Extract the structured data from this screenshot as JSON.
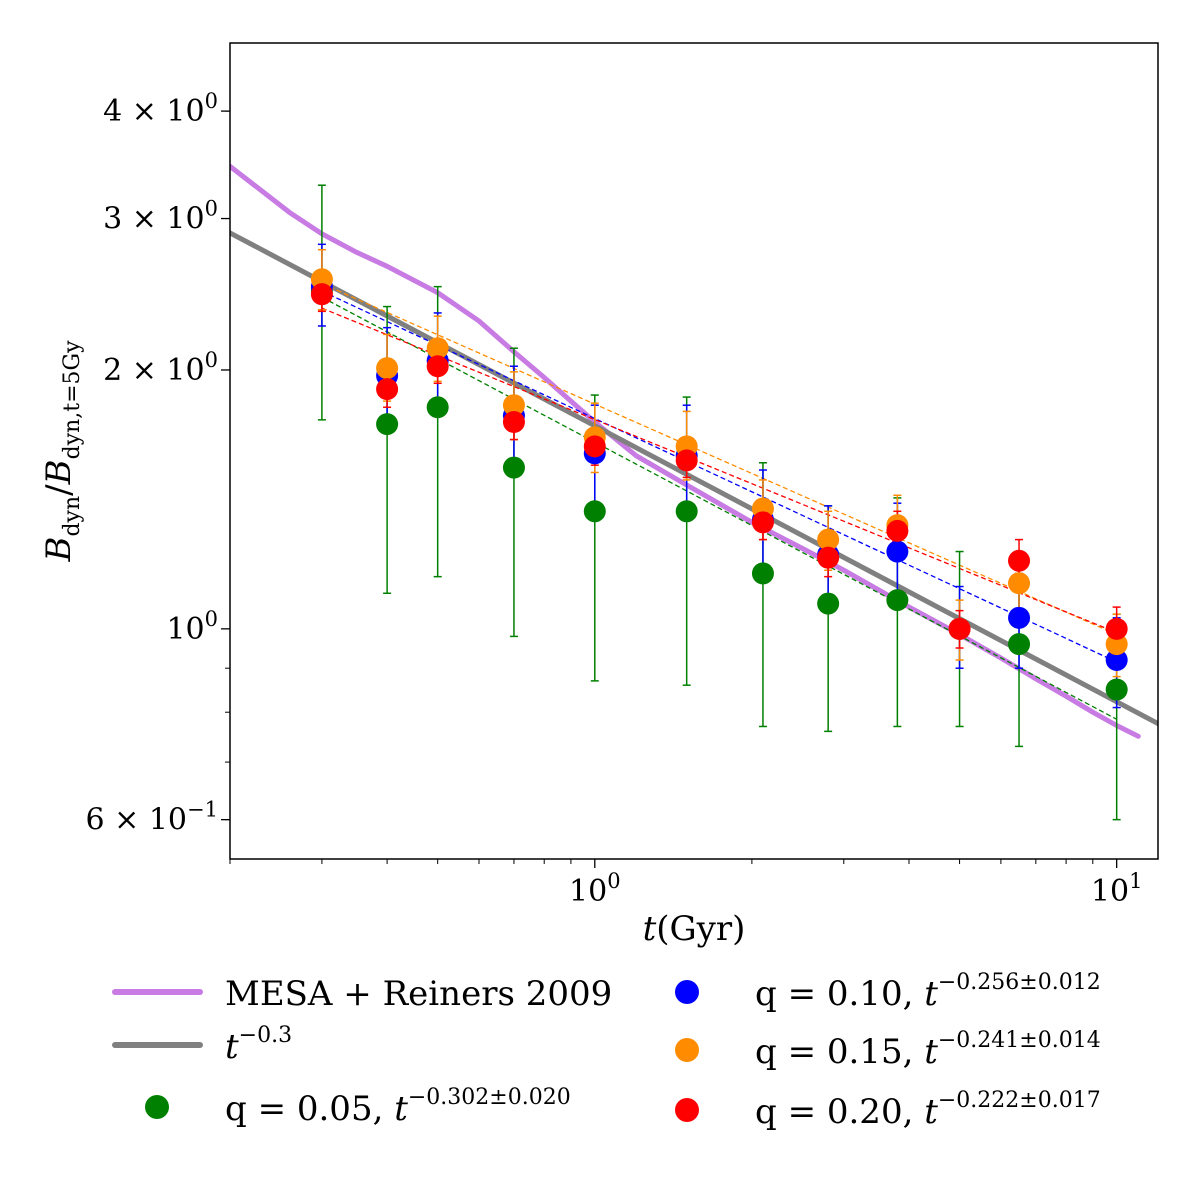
{
  "chart_data": {
    "type": "scatter",
    "xscale": "log",
    "yscale": "log",
    "xlim": [
      0.2,
      12
    ],
    "ylim": [
      0.54,
      4.8
    ],
    "xlabel": "t(Gyr)",
    "ylabel": "B_dyn / B_dyn,t=5Gy",
    "x_ticks": [
      {
        "value": 1,
        "label": "10^0"
      },
      {
        "value": 10,
        "label": "10^1"
      }
    ],
    "y_ticks": [
      {
        "value": 4,
        "label": "4 × 10^0"
      },
      {
        "value": 3,
        "label": "3 × 10^0"
      },
      {
        "value": 2,
        "label": "2 × 10^0"
      },
      {
        "value": 1,
        "label": "10^0"
      },
      {
        "value": 0.6,
        "label": "6 × 10^-1"
      }
    ],
    "x_minor_ticks": [
      0.2,
      0.3,
      0.4,
      0.5,
      0.6,
      0.7,
      0.8,
      0.9,
      2,
      3,
      4,
      5,
      6,
      7,
      8,
      9
    ],
    "y_minor_ticks": [
      0.6,
      0.7,
      0.8,
      0.9,
      2,
      3,
      4
    ],
    "lines": [
      {
        "name": "MESA + Reiners 2009",
        "color": "#c77be3",
        "x": [
          0.2,
          0.26,
          0.3,
          0.35,
          0.4,
          0.5,
          0.6,
          0.7,
          0.8,
          0.9,
          1.0,
          1.2,
          1.5,
          2.0,
          2.5,
          3.0,
          4.0,
          5.0,
          6.0,
          7.0,
          8.0,
          9.0,
          10.0,
          11.0
        ],
        "y": [
          3.45,
          3.05,
          2.88,
          2.74,
          2.64,
          2.46,
          2.28,
          2.1,
          1.96,
          1.84,
          1.74,
          1.59,
          1.47,
          1.33,
          1.24,
          1.17,
          1.06,
          0.985,
          0.925,
          0.875,
          0.835,
          0.8,
          0.772,
          0.75
        ]
      },
      {
        "name": "t^-0.3",
        "color": "#808080",
        "x": [
          0.2,
          12
        ],
        "y": [
          2.887,
          0.776
        ]
      }
    ],
    "series": [
      {
        "name": "q = 0.05",
        "exponent_label": "−0.302±0.020",
        "color": "#008000",
        "x": [
          0.3,
          0.4,
          0.5,
          0.7,
          1.0,
          1.5,
          2.1,
          2.8,
          3.8,
          5.0,
          6.5,
          10.0
        ],
        "y": [
          2.47,
          1.73,
          1.81,
          1.54,
          1.37,
          1.37,
          1.16,
          1.07,
          1.08,
          1.0,
          0.96,
          0.85
        ],
        "yerr_low": [
          1.75,
          1.1,
          1.15,
          0.98,
          0.87,
          0.86,
          0.77,
          0.76,
          0.77,
          0.77,
          0.73,
          0.6
        ],
        "yerr_high": [
          3.28,
          2.37,
          2.5,
          2.12,
          1.87,
          1.86,
          1.56,
          1.39,
          1.42,
          1.23,
          1.2,
          1.04
        ],
        "fit_start": 2.43,
        "fit_end": 0.785
      },
      {
        "name": "q = 0.10",
        "exponent_label": "−0.256±0.012",
        "color": "#0000ff",
        "x": [
          0.3,
          0.4,
          0.5,
          0.7,
          1.0,
          1.5,
          2.1,
          2.8,
          3.8,
          5.0,
          6.5,
          10.0
        ],
        "y": [
          2.5,
          1.97,
          2.05,
          1.77,
          1.6,
          1.59,
          1.34,
          1.22,
          1.23,
          1.0,
          1.03,
          0.92
        ],
        "yerr_low": [
          2.25,
          1.7,
          1.77,
          1.54,
          1.38,
          1.38,
          1.17,
          1.05,
          1.07,
          0.9,
          0.9,
          0.81
        ],
        "yerr_high": [
          2.8,
          2.24,
          2.33,
          2.02,
          1.82,
          1.82,
          1.53,
          1.39,
          1.4,
          1.12,
          1.16,
          1.03
        ],
        "fit_start": 2.47,
        "fit_end": 0.915
      },
      {
        "name": "q = 0.15",
        "exponent_label": "−0.241±0.014",
        "color": "#ff8c00",
        "x": [
          0.3,
          0.4,
          0.5,
          0.7,
          1.0,
          1.5,
          2.1,
          2.8,
          3.8,
          5.0,
          6.5,
          10.0
        ],
        "y": [
          2.55,
          2.01,
          2.12,
          1.82,
          1.67,
          1.63,
          1.38,
          1.27,
          1.32,
          1.0,
          1.13,
          0.96
        ],
        "yerr_low": [
          2.35,
          1.84,
          1.94,
          1.66,
          1.52,
          1.49,
          1.27,
          1.17,
          1.21,
          0.92,
          1.04,
          0.88
        ],
        "yerr_high": [
          2.76,
          2.2,
          2.31,
          1.99,
          1.83,
          1.79,
          1.49,
          1.37,
          1.43,
          1.08,
          1.23,
          1.04
        ],
        "fit_start": 2.52,
        "fit_end": 0.985
      },
      {
        "name": "q = 0.20",
        "exponent_label": "−0.222±0.017",
        "color": "#ff0000",
        "x": [
          0.3,
          0.4,
          0.5,
          0.7,
          1.0,
          1.5,
          2.1,
          2.8,
          3.8,
          5.0,
          6.5,
          10.0
        ],
        "y": [
          2.45,
          1.9,
          2.02,
          1.74,
          1.63,
          1.57,
          1.33,
          1.21,
          1.3,
          1.0,
          1.2,
          1.0
        ],
        "yerr_low": [
          2.34,
          1.81,
          1.93,
          1.66,
          1.55,
          1.5,
          1.27,
          1.15,
          1.24,
          0.95,
          1.13,
          0.94
        ],
        "yerr_high": [
          2.57,
          2.0,
          2.12,
          1.83,
          1.71,
          1.65,
          1.4,
          1.27,
          1.37,
          1.05,
          1.27,
          1.06
        ],
        "fit_start": 2.36,
        "fit_end": 0.99
      }
    ],
    "legend": {
      "placement": "below",
      "entries": [
        {
          "kind": "line",
          "color": "#c77be3",
          "label": "MESA + Reiners 2009"
        },
        {
          "kind": "line",
          "color": "#808080",
          "label": "t",
          "sup": "−0.3"
        },
        {
          "kind": "marker",
          "color": "#008000",
          "label": "q = 0.05, t",
          "sup": "−0.302±0.020"
        },
        {
          "kind": "marker",
          "color": "#0000ff",
          "label": "q = 0.10, t",
          "sup": "−0.256±0.012"
        },
        {
          "kind": "marker",
          "color": "#ff8c00",
          "label": "q = 0.15, t",
          "sup": "−0.241±0.014"
        },
        {
          "kind": "marker",
          "color": "#ff0000",
          "label": "q = 0.20, t",
          "sup": "−0.222±0.017"
        }
      ]
    }
  }
}
